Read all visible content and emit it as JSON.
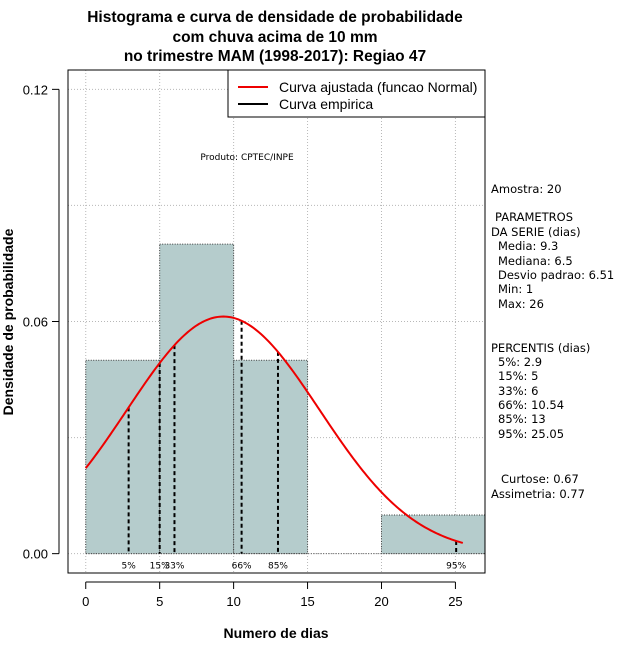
{
  "chart_data": {
    "type": "histogram",
    "title_lines": [
      "Histograma e curva de densidade de probabilidade",
      "com chuva acima de 10 mm",
      "no trimestre MAM (1998-2017): Regiao 47"
    ],
    "xlabel": "Numero de dias",
    "ylabel": "Densidade de probabilidade",
    "xlim": [
      -1.2,
      27
    ],
    "ylim": [
      -0.005,
      0.125
    ],
    "xticks": [
      0,
      5,
      10,
      15,
      20,
      25
    ],
    "yticks": [
      0.0,
      0.06,
      0.12
    ],
    "ytick_labels": [
      "0.00",
      "0.06",
      "0.12"
    ],
    "grid": true,
    "grid_x": [
      0,
      5,
      10,
      15,
      20,
      25
    ],
    "grid_y": [
      0.0,
      0.03,
      0.06,
      0.09,
      0.12
    ],
    "bins": [
      {
        "x0": 0,
        "x1": 5,
        "density": 0.05
      },
      {
        "x0": 5,
        "x1": 10,
        "density": 0.08
      },
      {
        "x0": 10,
        "x1": 15,
        "density": 0.05
      },
      {
        "x0": 15,
        "x1": 20,
        "density": 0.0
      },
      {
        "x0": 20,
        "x1": 27,
        "density": 0.01
      }
    ],
    "bar_color": "#b5cccc",
    "normal_curve": {
      "mean": 9.3,
      "sd": 6.51,
      "x_from": 0,
      "x_to": 25.5,
      "color": "#ee0000"
    },
    "percentile_lines": [
      {
        "label": "5%",
        "value": 2.9
      },
      {
        "label": "15%",
        "value": 5
      },
      {
        "label": "33%",
        "value": 6
      },
      {
        "label": "66%",
        "value": 10.54
      },
      {
        "label": "85%",
        "value": 13
      },
      {
        "label": "95%",
        "value": 25.05
      }
    ],
    "legend": {
      "position": "top-right",
      "items": [
        {
          "label": "Curva ajustada (funcao Normal)",
          "color": "#ee0000"
        },
        {
          "label": "Curva empirica",
          "color": "#000000"
        }
      ]
    },
    "credit": "Produto: CPTEC/INPE"
  },
  "side_panel": {
    "amostra": "Amostra: 20",
    "parametros_title_1": "PARAMETROS",
    "parametros_title_2": "DA SERIE (dias)",
    "parametros": [
      "Media: 9.3",
      "Mediana: 6.5",
      "Desvio padrao: 6.51",
      "Min: 1",
      "Max: 26"
    ],
    "percentis_title": "PERCENTIS (dias)",
    "percentis": [
      "5%: 2.9",
      "15%: 5",
      "33%: 6",
      "66%: 10.54",
      "85%: 13",
      "95%: 25.05"
    ],
    "curtose": "Curtose: 0.67",
    "assimetria": "Assimetria: 0.77"
  }
}
